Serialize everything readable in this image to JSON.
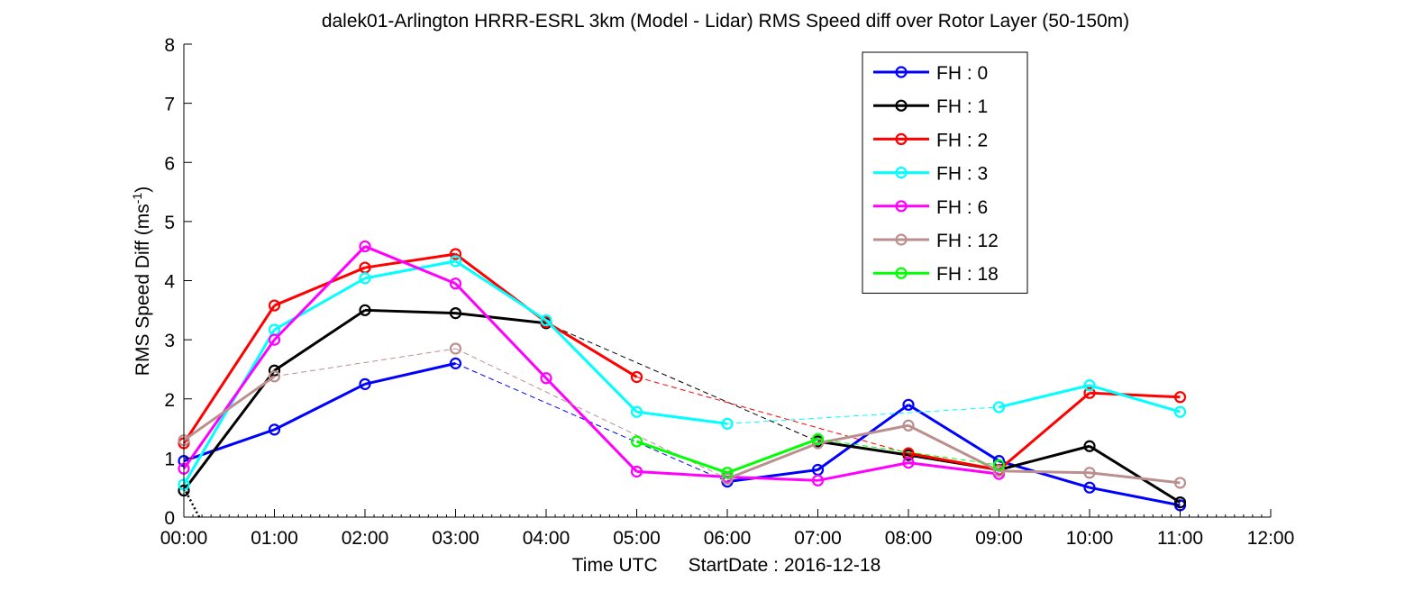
{
  "chart_data": {
    "type": "line",
    "title": "dalek01-Arlington HRRR-ESRL 3km (Model - Lidar) RMS Speed diff over Rotor Layer (50-150m)",
    "xlabel_time": "Time UTC",
    "xlabel_start": "StartDate : 2016-12-18",
    "ylabel_main": "RMS Speed Diff (ms",
    "ylabel_sup": "-1",
    "ylabel_close": ")",
    "xlim": [
      0,
      12
    ],
    "ylim": [
      0,
      8
    ],
    "x_tick_labels": [
      "00:00",
      "01:00",
      "02:00",
      "03:00",
      "04:00",
      "05:00",
      "06:00",
      "07:00",
      "08:00",
      "09:00",
      "10:00",
      "11:00",
      "12:00"
    ],
    "y_tick_labels": [
      "0",
      "1",
      "2",
      "3",
      "4",
      "5",
      "6",
      "7",
      "8"
    ],
    "grid": false,
    "legend_position": "top-right",
    "series": [
      {
        "name": "FH : 0",
        "color": "#0000ff",
        "points": [
          [
            0,
            0.95
          ],
          [
            1,
            1.48
          ],
          [
            2,
            2.25
          ],
          [
            3,
            2.6
          ],
          [
            6,
            0.6
          ],
          [
            7,
            0.8
          ],
          [
            8,
            1.9
          ],
          [
            9,
            0.95
          ],
          [
            10,
            0.5
          ],
          [
            11,
            0.2
          ]
        ]
      },
      {
        "name": "FH : 1",
        "color": "#000000",
        "points": [
          [
            0,
            0.45
          ],
          [
            1,
            2.48
          ],
          [
            2,
            3.5
          ],
          [
            3,
            3.45
          ],
          [
            4,
            3.28
          ],
          [
            7,
            1.28
          ],
          [
            8,
            1.05
          ],
          [
            9,
            0.8
          ],
          [
            10,
            1.2
          ],
          [
            11,
            0.25
          ]
        ]
      },
      {
        "name": "FH : 2",
        "color": "#ff0000",
        "points": [
          [
            0,
            1.25
          ],
          [
            1,
            3.58
          ],
          [
            2,
            4.22
          ],
          [
            3,
            4.45
          ],
          [
            4,
            3.3
          ],
          [
            5,
            2.37
          ],
          [
            8,
            1.08
          ],
          [
            9,
            0.8
          ],
          [
            10,
            2.1
          ],
          [
            11,
            2.03
          ]
        ]
      },
      {
        "name": "FH : 3",
        "color": "#00ffff",
        "points": [
          [
            0,
            0.55
          ],
          [
            1,
            3.17
          ],
          [
            2,
            4.04
          ],
          [
            3,
            4.33
          ],
          [
            4,
            3.33
          ],
          [
            5,
            1.78
          ],
          [
            6,
            1.58
          ],
          [
            9,
            1.86
          ],
          [
            10,
            2.23
          ],
          [
            11,
            1.78
          ]
        ]
      },
      {
        "name": "FH : 6",
        "color": "#ff00ff",
        "points": [
          [
            0,
            0.82
          ],
          [
            1,
            3.0
          ],
          [
            2,
            4.58
          ],
          [
            3,
            3.95
          ],
          [
            4,
            2.35
          ],
          [
            5,
            0.77
          ],
          [
            6,
            0.68
          ],
          [
            7,
            0.62
          ],
          [
            8,
            0.92
          ],
          [
            9,
            0.73
          ]
        ]
      },
      {
        "name": "FH : 12",
        "color": "#bc8f8f",
        "points": [
          [
            0,
            1.3
          ],
          [
            1,
            2.38
          ],
          [
            3,
            2.85
          ],
          [
            6,
            0.65
          ],
          [
            7,
            1.25
          ],
          [
            8,
            1.55
          ],
          [
            9,
            0.78
          ],
          [
            10,
            0.75
          ],
          [
            11,
            0.58
          ]
        ]
      },
      {
        "name": "FH : 18",
        "color": "#00ff00",
        "points": [
          [
            5,
            1.28
          ],
          [
            6,
            0.75
          ],
          [
            7,
            1.32
          ],
          [
            9,
            0.88
          ]
        ]
      }
    ],
    "reference_line": {
      "color": "#000000",
      "points": [
        [
          0,
          0.5
        ],
        [
          0.17,
          0
        ]
      ]
    }
  }
}
